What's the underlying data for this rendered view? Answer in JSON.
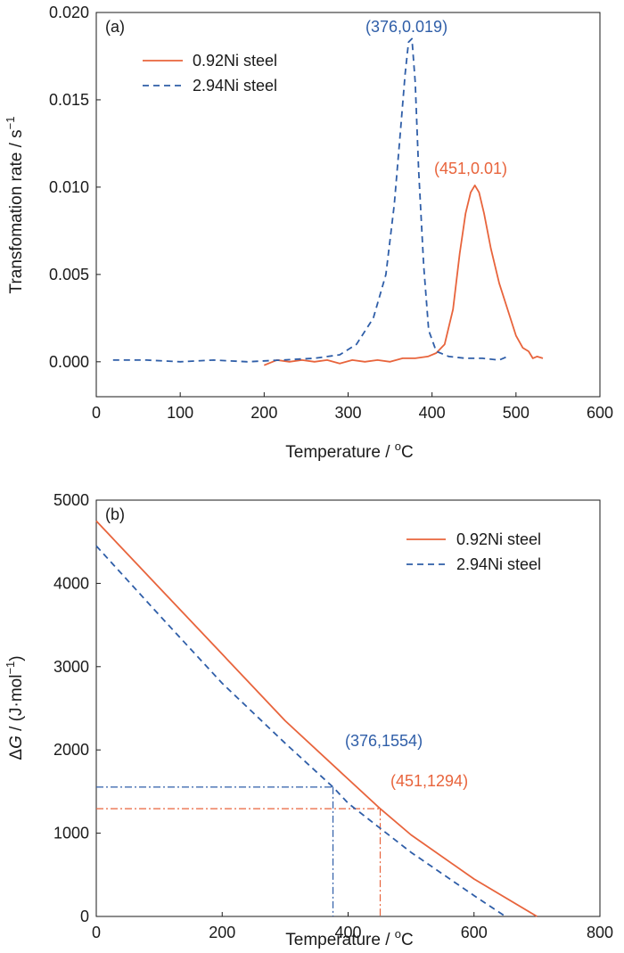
{
  "colors": {
    "orange": "#e8643c",
    "blue": "#2f5ea8"
  },
  "chart_data": [
    {
      "type": "line",
      "panel_label": "(a)",
      "xlabel": "Temperature / ",
      "xlabel_sup": "o",
      "xlabel_tail": "C",
      "ylabel": "Transfomation rate / s",
      "ylabel_sup": "−1",
      "xlim": [
        0,
        600
      ],
      "ylim": [
        -0.002,
        0.02
      ],
      "xticks": [
        0,
        100,
        200,
        300,
        400,
        500,
        600
      ],
      "yticks": [
        0.0,
        0.005,
        0.01,
        0.015,
        0.02
      ],
      "ytick_labels": [
        "0.000",
        "0.005",
        "0.010",
        "0.015",
        "0.020"
      ],
      "legend_position": "top-left",
      "series": [
        {
          "name": "0.92Ni steel",
          "color": "orange",
          "dash": "solid",
          "x": [
            200,
            215,
            230,
            245,
            260,
            275,
            290,
            305,
            320,
            335,
            350,
            365,
            380,
            395,
            405,
            415,
            425,
            433,
            440,
            446,
            451,
            456,
            462,
            470,
            480,
            490,
            500,
            508,
            515,
            520,
            525,
            532
          ],
          "y": [
            -0.0002,
            0.0001,
            0.0,
            0.0001,
            0.0,
            0.0001,
            -0.0001,
            0.0001,
            0.0,
            0.0001,
            0.0,
            0.0002,
            0.0002,
            0.0003,
            0.0005,
            0.001,
            0.003,
            0.0062,
            0.0085,
            0.0097,
            0.0101,
            0.0097,
            0.0085,
            0.0065,
            0.0045,
            0.003,
            0.0015,
            0.0008,
            0.0006,
            0.0002,
            0.0003,
            0.0002
          ]
        },
        {
          "name": "2.94Ni steel",
          "color": "blue",
          "dash": "dashed",
          "x": [
            20,
            60,
            100,
            140,
            180,
            220,
            260,
            290,
            310,
            330,
            345,
            355,
            362,
            368,
            372,
            376,
            380,
            384,
            390,
            396,
            405,
            420,
            440,
            460,
            480,
            490
          ],
          "y": [
            0.0001,
            0.0001,
            0.0,
            0.0001,
            0.0,
            0.0001,
            0.0002,
            0.0004,
            0.001,
            0.0025,
            0.005,
            0.009,
            0.013,
            0.0165,
            0.0183,
            0.0185,
            0.016,
            0.011,
            0.0055,
            0.0018,
            0.0006,
            0.0003,
            0.0002,
            0.0002,
            0.0001,
            0.0003
          ]
        }
      ],
      "annotations": [
        {
          "text": "(376,0.019)",
          "color": "blue",
          "x": 376,
          "y": 0.019
        },
        {
          "text": "(451,0.01)",
          "color": "orange",
          "x": 451,
          "y": 0.01
        }
      ]
    },
    {
      "type": "line",
      "panel_label": "(b)",
      "xlabel": "Temperature / ",
      "xlabel_sup": "o",
      "xlabel_tail": "C",
      "ylabel_prefix": "Δ",
      "ylabel_italic": "G",
      "ylabel": " / (J·mol",
      "ylabel_sup": "−1",
      "ylabel_tail": ")",
      "xlim": [
        0,
        800
      ],
      "ylim": [
        0,
        5000
      ],
      "xticks": [
        0,
        200,
        400,
        600,
        800
      ],
      "yticks": [
        0,
        1000,
        2000,
        3000,
        4000,
        5000
      ],
      "ytick_labels": [
        "0",
        "1000",
        "2000",
        "3000",
        "4000",
        "5000"
      ],
      "legend_position": "top-right",
      "series": [
        {
          "name": "0.92Ni steel",
          "color": "orange",
          "dash": "solid",
          "x": [
            0,
            100,
            200,
            300,
            400,
            451,
            500,
            600,
            700
          ],
          "y": [
            4750,
            3950,
            3150,
            2350,
            1650,
            1294,
            980,
            450,
            0
          ]
        },
        {
          "name": "2.94Ni steel",
          "color": "blue",
          "dash": "dashed",
          "x": [
            0,
            100,
            200,
            300,
            376,
            400,
            500,
            600,
            650
          ],
          "y": [
            4450,
            3620,
            2800,
            2080,
            1554,
            1360,
            770,
            250,
            0
          ]
        }
      ],
      "annotations": [
        {
          "text": "(376,1554)",
          "color": "blue",
          "x": 376,
          "y": 1554
        },
        {
          "text": "(451,1294)",
          "color": "orange",
          "x": 451,
          "y": 1294
        }
      ]
    }
  ]
}
